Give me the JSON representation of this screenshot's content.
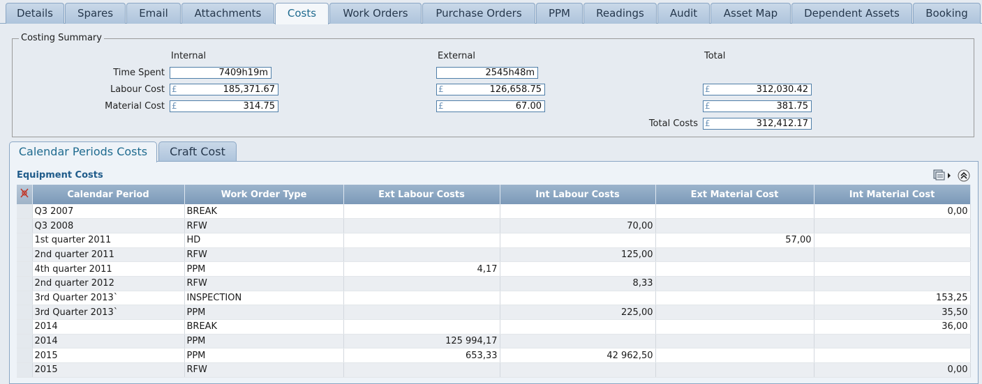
{
  "tabs": [
    {
      "label": "Details"
    },
    {
      "label": "Spares"
    },
    {
      "label": "Email"
    },
    {
      "label": "Attachments"
    },
    {
      "label": "Costs"
    },
    {
      "label": "Work Orders"
    },
    {
      "label": "Purchase Orders"
    },
    {
      "label": "PPM"
    },
    {
      "label": "Readings"
    },
    {
      "label": "Audit"
    },
    {
      "label": "Asset Map"
    },
    {
      "label": "Dependent Assets"
    },
    {
      "label": "Booking"
    }
  ],
  "active_tab": "Costs",
  "summary": {
    "title": "Costing Summary",
    "col_internal": "Internal",
    "col_external": "External",
    "col_total": "Total",
    "currency_symbol": "£",
    "time_spent_label": "Time Spent",
    "labour_cost_label": "Labour Cost",
    "material_cost_label": "Material Cost",
    "total_costs_label": "Total Costs",
    "time_internal": "7409h19m",
    "time_external": "2545h48m",
    "labour_internal": "185,371.67",
    "labour_external": "126,658.75",
    "labour_total": "312,030.42",
    "material_internal": "314.75",
    "material_external": "67.00",
    "material_total": "381.75",
    "total_costs": "312,412.17"
  },
  "subtabs": [
    {
      "label": "Calendar Periods Costs"
    },
    {
      "label": "Craft Cost"
    }
  ],
  "panel": {
    "title": "Equipment Costs",
    "export_icon": "export-menu-icon",
    "collapse_icon": "collapse-icon"
  },
  "grid": {
    "columns": [
      "Calendar Period",
      "Work Order Type",
      "Ext Labour Costs",
      "Int Labour Costs",
      "Ext Material Cost",
      "Int Material Cost"
    ],
    "rows": [
      [
        "Q3 2007",
        "BREAK",
        "",
        "",
        "",
        "0,00"
      ],
      [
        "Q3 2008",
        "RFW",
        "",
        "70,00",
        "",
        ""
      ],
      [
        "1st quarter 2011",
        "HD",
        "",
        "",
        "57,00",
        ""
      ],
      [
        "2nd quarter 2011",
        "RFW",
        "",
        "125,00",
        "",
        ""
      ],
      [
        "4th quarter 2011",
        "PPM",
        "4,17",
        "",
        "",
        ""
      ],
      [
        "2nd quarter 2012",
        "RFW",
        "",
        "8,33",
        "",
        ""
      ],
      [
        "3rd Quarter 2013`",
        "INSPECTION",
        "",
        "",
        "",
        "153,25"
      ],
      [
        "3rd Quarter 2013`",
        "PPM",
        "",
        "225,00",
        "",
        "35,50"
      ],
      [
        "2014",
        "BREAK",
        "",
        "",
        "",
        "36,00"
      ],
      [
        "2014",
        "PPM",
        "125 994,17",
        "",
        "",
        ""
      ],
      [
        "2015",
        "PPM",
        "653,33",
        "42 962,50",
        "",
        ""
      ],
      [
        "2015",
        "RFW",
        "",
        "",
        "",
        "0,00"
      ]
    ]
  }
}
